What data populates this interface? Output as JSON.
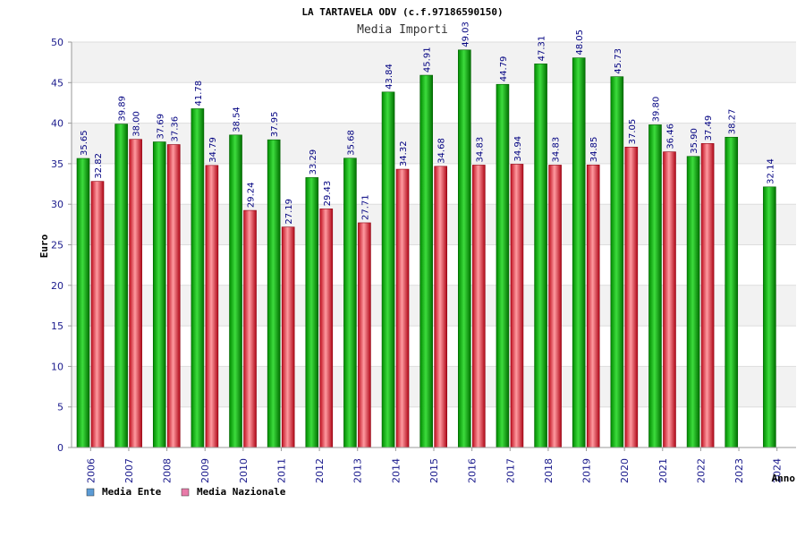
{
  "chart_data": {
    "type": "bar",
    "title": "LA TARTAVELA ODV (c.f.97186590150)",
    "subtitle": "Media Importi",
    "xlabel": "Anno",
    "ylabel": "Euro",
    "ylim": [
      0,
      50
    ],
    "yticks": [
      "0",
      "5",
      "10",
      "15",
      "20",
      "25",
      "30",
      "35",
      "40",
      "45",
      "50"
    ],
    "grid": true,
    "legend_position": "bottom-left",
    "categories": [
      "2006",
      "2007",
      "2008",
      "2009",
      "2010",
      "2011",
      "2012",
      "2013",
      "2014",
      "2015",
      "2016",
      "2017",
      "2018",
      "2019",
      "2020",
      "2021",
      "2022",
      "2023",
      "2024"
    ],
    "series": [
      {
        "name": "Media Ente",
        "legend_color": "#5b9bd5",
        "bar_color": "#00b000",
        "values": [
          35.65,
          39.89,
          37.69,
          41.78,
          38.54,
          37.95,
          33.29,
          35.68,
          43.84,
          45.91,
          49.03,
          44.79,
          47.31,
          48.05,
          45.73,
          39.8,
          35.9,
          38.27,
          32.14
        ],
        "labels": [
          "35.65",
          "39.89",
          "37.69",
          "41.78",
          "38.54",
          "37.95",
          "33.29",
          "35.68",
          "43.84",
          "45.91",
          "49.03",
          "44.79",
          "47.31",
          "48.05",
          "45.73",
          "39.80",
          "35.90",
          "38.27",
          "32.14"
        ]
      },
      {
        "name": "Media Nazionale",
        "legend_color": "#e87aa8",
        "bar_color": "#e02030",
        "values": [
          32.82,
          38.0,
          37.36,
          34.79,
          29.24,
          27.19,
          29.43,
          27.71,
          34.32,
          34.68,
          34.83,
          34.94,
          34.83,
          34.85,
          37.05,
          36.46,
          37.49,
          null,
          null
        ],
        "labels": [
          "32.82",
          "38.00",
          "37.36",
          "34.79",
          "29.24",
          "27.19",
          "29.43",
          "27.71",
          "34.32",
          "34.68",
          "34.83",
          "34.94",
          "34.83",
          "34.85",
          "37.05",
          "36.46",
          "37.49",
          null,
          null
        ]
      }
    ]
  }
}
